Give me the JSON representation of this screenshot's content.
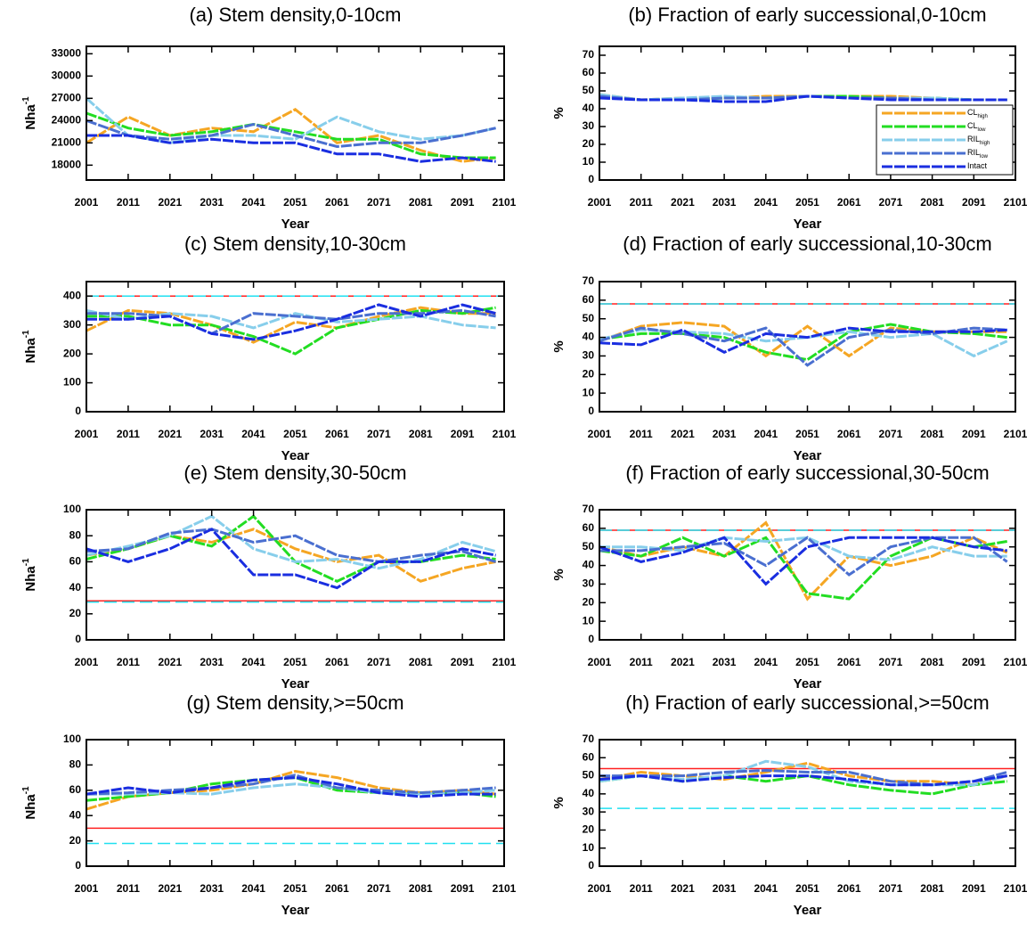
{
  "chart_data": [
    {
      "type": "line",
      "title": "(a) Stem density,0-10cm",
      "xlabel": "Year",
      "ylabel": "Nha",
      "ylabel_sup": "-1",
      "x": [
        2001,
        2011,
        2021,
        2031,
        2041,
        2051,
        2061,
        2071,
        2081,
        2091,
        2099
      ],
      "xlim": [
        2001,
        2101
      ],
      "xticks": [
        2001,
        2011,
        2021,
        2031,
        2041,
        2051,
        2061,
        2071,
        2081,
        2091,
        2101
      ],
      "ylim": [
        16000,
        34000
      ],
      "yticks": [
        18000,
        21000,
        24000,
        27000,
        30000,
        33000
      ],
      "series": [
        {
          "name": "CL",
          "subscript": "high",
          "color": "#f5a623",
          "values": [
            21000,
            24500,
            22000,
            23000,
            22500,
            25500,
            21000,
            22000,
            20000,
            18500,
            19000
          ]
        },
        {
          "name": "CL",
          "subscript": "low",
          "color": "#22dd22",
          "values": [
            25000,
            23000,
            22000,
            22500,
            23500,
            22500,
            21500,
            21500,
            19500,
            19000,
            19000
          ]
        },
        {
          "name": "RIL",
          "subscript": "high",
          "color": "#87ceeb",
          "values": [
            27000,
            22000,
            21000,
            22000,
            22000,
            21500,
            24500,
            22500,
            21500,
            22000,
            23000
          ]
        },
        {
          "name": "RIL",
          "subscript": "low",
          "color": "#4a6fd0",
          "values": [
            24000,
            22000,
            21500,
            22000,
            23500,
            22000,
            20500,
            21000,
            21000,
            22000,
            23000
          ]
        },
        {
          "name": "Intact",
          "color": "#1a2ee0",
          "values": [
            22000,
            22000,
            21000,
            21500,
            21000,
            21000,
            19500,
            19500,
            18500,
            19000,
            18500
          ]
        }
      ],
      "reference_lines": []
    },
    {
      "type": "line",
      "title": "(b) Fraction of early successional,0-10cm",
      "xlabel": "Year",
      "ylabel": "%",
      "x": [
        2001,
        2011,
        2021,
        2031,
        2041,
        2051,
        2061,
        2071,
        2081,
        2091,
        2099
      ],
      "xlim": [
        2001,
        2101
      ],
      "xticks": [
        2001,
        2011,
        2021,
        2031,
        2041,
        2051,
        2061,
        2071,
        2081,
        2091,
        2101
      ],
      "ylim": [
        0,
        75
      ],
      "yticks": [
        0,
        10,
        20,
        30,
        40,
        50,
        60,
        70
      ],
      "legend": "lower right",
      "series": [
        {
          "name": "CL",
          "subscript": "high",
          "color": "#f5a623",
          "values": [
            48,
            45,
            46,
            46,
            47,
            47,
            47,
            47,
            46,
            45,
            45
          ]
        },
        {
          "name": "CL",
          "subscript": "low",
          "color": "#22dd22",
          "values": [
            47,
            45,
            45,
            46,
            46,
            47,
            47,
            46,
            46,
            45,
            45
          ]
        },
        {
          "name": "RIL",
          "subscript": "high",
          "color": "#87ceeb",
          "values": [
            48,
            45,
            46,
            47,
            46,
            47,
            46,
            46,
            46,
            45,
            45
          ]
        },
        {
          "name": "RIL",
          "subscript": "low",
          "color": "#4a6fd0",
          "values": [
            47,
            45,
            45,
            46,
            46,
            47,
            46,
            46,
            45,
            45,
            45
          ]
        },
        {
          "name": "Intact",
          "color": "#1a2ee0",
          "values": [
            46,
            45,
            45,
            44,
            44,
            47,
            46,
            45,
            45,
            45,
            45
          ]
        }
      ],
      "reference_lines": []
    },
    {
      "type": "line",
      "title": "(c) Stem density,10-30cm",
      "xlabel": "Year",
      "ylabel": "Nha",
      "ylabel_sup": "-1",
      "x": [
        2001,
        2011,
        2021,
        2031,
        2041,
        2051,
        2061,
        2071,
        2081,
        2091,
        2099
      ],
      "xlim": [
        2001,
        2101
      ],
      "xticks": [
        2001,
        2011,
        2021,
        2031,
        2041,
        2051,
        2061,
        2071,
        2081,
        2091,
        2101
      ],
      "ylim": [
        0,
        450
      ],
      "yticks": [
        0,
        100,
        200,
        300,
        400
      ],
      "series": [
        {
          "name": "CL",
          "subscript": "high",
          "color": "#f5a623",
          "values": [
            280,
            350,
            340,
            300,
            240,
            310,
            290,
            330,
            360,
            340,
            340
          ]
        },
        {
          "name": "CL",
          "subscript": "low",
          "color": "#22dd22",
          "values": [
            330,
            330,
            300,
            300,
            260,
            200,
            290,
            320,
            350,
            340,
            360
          ]
        },
        {
          "name": "RIL",
          "subscript": "high",
          "color": "#87ceeb",
          "values": [
            350,
            320,
            340,
            330,
            290,
            340,
            310,
            320,
            330,
            300,
            290
          ]
        },
        {
          "name": "RIL",
          "subscript": "low",
          "color": "#4a6fd0",
          "values": [
            340,
            340,
            330,
            270,
            340,
            330,
            320,
            340,
            340,
            350,
            330
          ]
        },
        {
          "name": "Intact",
          "color": "#1a2ee0",
          "values": [
            320,
            320,
            330,
            270,
            250,
            280,
            320,
            370,
            330,
            370,
            340
          ]
        }
      ],
      "reference_lines": [
        {
          "value": 400,
          "color": "#ff2020"
        },
        {
          "value": 400,
          "color": "#20e0f0",
          "dashed": true
        }
      ]
    },
    {
      "type": "line",
      "title": "(d) Fraction of early successional,10-30cm",
      "xlabel": "Year",
      "ylabel": "%",
      "x": [
        2001,
        2011,
        2021,
        2031,
        2041,
        2051,
        2061,
        2071,
        2081,
        2091,
        2099
      ],
      "xlim": [
        2001,
        2101
      ],
      "xticks": [
        2001,
        2011,
        2021,
        2031,
        2041,
        2051,
        2061,
        2071,
        2081,
        2091,
        2101
      ],
      "ylim": [
        0,
        70
      ],
      "yticks": [
        0,
        10,
        20,
        30,
        40,
        50,
        60,
        70
      ],
      "series": [
        {
          "name": "CL",
          "subscript": "high",
          "color": "#f5a623",
          "values": [
            38,
            46,
            48,
            46,
            30,
            46,
            30,
            45,
            43,
            43,
            43
          ]
        },
        {
          "name": "CL",
          "subscript": "low",
          "color": "#22dd22",
          "values": [
            39,
            42,
            42,
            40,
            32,
            28,
            43,
            47,
            43,
            42,
            40
          ]
        },
        {
          "name": "RIL",
          "subscript": "high",
          "color": "#87ceeb",
          "values": [
            39,
            44,
            43,
            42,
            38,
            40,
            43,
            40,
            42,
            30,
            38
          ]
        },
        {
          "name": "RIL",
          "subscript": "low",
          "color": "#4a6fd0",
          "values": [
            38,
            45,
            42,
            38,
            45,
            25,
            40,
            44,
            42,
            45,
            44
          ]
        },
        {
          "name": "Intact",
          "color": "#1a2ee0",
          "values": [
            37,
            36,
            44,
            32,
            42,
            40,
            45,
            43,
            43,
            43,
            44
          ]
        }
      ],
      "reference_lines": [
        {
          "value": 58,
          "color": "#ff2020"
        },
        {
          "value": 58,
          "color": "#20e0f0",
          "dashed": true
        }
      ]
    },
    {
      "type": "line",
      "title": "(e) Stem density,30-50cm",
      "xlabel": "Year",
      "ylabel": "Nha",
      "ylabel_sup": "-1",
      "x": [
        2001,
        2011,
        2021,
        2031,
        2041,
        2051,
        2061,
        2071,
        2081,
        2091,
        2099
      ],
      "xlim": [
        2001,
        2101
      ],
      "xticks": [
        2001,
        2011,
        2021,
        2031,
        2041,
        2051,
        2061,
        2071,
        2081,
        2091,
        2101
      ],
      "ylim": [
        0,
        100
      ],
      "yticks": [
        0,
        20,
        40,
        60,
        80,
        100
      ],
      "series": [
        {
          "name": "CL",
          "subscript": "high",
          "color": "#f5a623",
          "values": [
            65,
            70,
            80,
            75,
            85,
            70,
            60,
            65,
            45,
            55,
            60
          ]
        },
        {
          "name": "CL",
          "subscript": "low",
          "color": "#22dd22",
          "values": [
            62,
            70,
            80,
            72,
            95,
            60,
            45,
            60,
            60,
            65,
            62
          ]
        },
        {
          "name": "RIL",
          "subscript": "high",
          "color": "#87ceeb",
          "values": [
            65,
            72,
            80,
            95,
            70,
            60,
            62,
            55,
            62,
            75,
            68
          ]
        },
        {
          "name": "RIL",
          "subscript": "low",
          "color": "#4a6fd0",
          "values": [
            68,
            70,
            82,
            85,
            75,
            80,
            65,
            60,
            65,
            68,
            60
          ]
        },
        {
          "name": "Intact",
          "color": "#1a2ee0",
          "values": [
            70,
            60,
            70,
            85,
            50,
            50,
            40,
            60,
            60,
            70,
            65
          ]
        }
      ],
      "reference_lines": [
        {
          "value": 30,
          "color": "#ff2020"
        },
        {
          "value": 29,
          "color": "#20e0f0",
          "dashed": true
        }
      ]
    },
    {
      "type": "line",
      "title": "(f) Fraction of early successional,30-50cm",
      "xlabel": "Year",
      "ylabel": "%",
      "x": [
        2001,
        2011,
        2021,
        2031,
        2041,
        2051,
        2061,
        2071,
        2081,
        2091,
        2099
      ],
      "xlim": [
        2001,
        2101
      ],
      "xticks": [
        2001,
        2011,
        2021,
        2031,
        2041,
        2051,
        2061,
        2071,
        2081,
        2091,
        2101
      ],
      "ylim": [
        0,
        70
      ],
      "yticks": [
        0,
        10,
        20,
        30,
        40,
        50,
        60,
        70
      ],
      "series": [
        {
          "name": "CL",
          "subscript": "high",
          "color": "#f5a623",
          "values": [
            50,
            45,
            50,
            45,
            63,
            22,
            45,
            40,
            45,
            55,
            47
          ]
        },
        {
          "name": "CL",
          "subscript": "low",
          "color": "#22dd22",
          "values": [
            48,
            45,
            55,
            45,
            55,
            25,
            22,
            45,
            55,
            50,
            53
          ]
        },
        {
          "name": "RIL",
          "subscript": "high",
          "color": "#87ceeb",
          "values": [
            50,
            50,
            48,
            55,
            53,
            55,
            45,
            43,
            50,
            45,
            45
          ]
        },
        {
          "name": "RIL",
          "subscript": "low",
          "color": "#4a6fd0",
          "values": [
            48,
            48,
            50,
            52,
            40,
            55,
            35,
            50,
            55,
            55,
            42
          ]
        },
        {
          "name": "Intact",
          "color": "#1a2ee0",
          "values": [
            50,
            42,
            47,
            55,
            30,
            50,
            55,
            55,
            55,
            50,
            48
          ]
        }
      ],
      "reference_lines": [
        {
          "value": 59,
          "color": "#ff2020"
        },
        {
          "value": 59,
          "color": "#20e0f0",
          "dashed": true
        }
      ]
    },
    {
      "type": "line",
      "title": "(g) Stem density,>=50cm",
      "xlabel": "Year",
      "ylabel": "Nha",
      "ylabel_sup": "-1",
      "x": [
        2001,
        2011,
        2021,
        2031,
        2041,
        2051,
        2061,
        2071,
        2081,
        2091,
        2099
      ],
      "xlim": [
        2001,
        2101
      ],
      "xticks": [
        2001,
        2011,
        2021,
        2031,
        2041,
        2051,
        2061,
        2071,
        2081,
        2091,
        2101
      ],
      "ylim": [
        0,
        100
      ],
      "yticks": [
        0,
        20,
        40,
        60,
        80,
        100
      ],
      "series": [
        {
          "name": "CL",
          "subscript": "high",
          "color": "#f5a623",
          "values": [
            45,
            55,
            58,
            60,
            65,
            75,
            70,
            62,
            58,
            60,
            57
          ]
        },
        {
          "name": "CL",
          "subscript": "low",
          "color": "#22dd22",
          "values": [
            52,
            55,
            58,
            65,
            68,
            70,
            60,
            58,
            58,
            58,
            55
          ]
        },
        {
          "name": "RIL",
          "subscript": "high",
          "color": "#87ceeb",
          "values": [
            57,
            57,
            58,
            57,
            62,
            65,
            62,
            58,
            57,
            58,
            60
          ]
        },
        {
          "name": "RIL",
          "subscript": "low",
          "color": "#4a6fd0",
          "values": [
            57,
            58,
            60,
            62,
            65,
            72,
            62,
            60,
            58,
            60,
            62
          ]
        },
        {
          "name": "Intact",
          "color": "#1a2ee0",
          "values": [
            57,
            62,
            58,
            62,
            68,
            70,
            65,
            58,
            55,
            57,
            57
          ]
        }
      ],
      "reference_lines": [
        {
          "value": 30,
          "color": "#ff2020"
        },
        {
          "value": 18,
          "color": "#20e0f0",
          "dashed": true
        }
      ]
    },
    {
      "type": "line",
      "title": "(h) Fraction of early successional,>=50cm",
      "xlabel": "Year",
      "ylabel": "%",
      "x": [
        2001,
        2011,
        2021,
        2031,
        2041,
        2051,
        2061,
        2071,
        2081,
        2091,
        2099
      ],
      "xlim": [
        2001,
        2101
      ],
      "xticks": [
        2001,
        2011,
        2021,
        2031,
        2041,
        2051,
        2061,
        2071,
        2081,
        2091,
        2101
      ],
      "ylim": [
        0,
        70
      ],
      "yticks": [
        0,
        10,
        20,
        30,
        40,
        50,
        60,
        70
      ],
      "series": [
        {
          "name": "CL",
          "subscript": "high",
          "color": "#f5a623",
          "values": [
            48,
            52,
            50,
            48,
            52,
            57,
            50,
            47,
            47,
            45,
            50
          ]
        },
        {
          "name": "CL",
          "subscript": "low",
          "color": "#22dd22",
          "values": [
            47,
            50,
            47,
            50,
            47,
            50,
            45,
            42,
            40,
            45,
            47
          ]
        },
        {
          "name": "RIL",
          "subscript": "high",
          "color": "#87ceeb",
          "values": [
            47,
            50,
            48,
            50,
            58,
            55,
            47,
            45,
            45,
            45,
            50
          ]
        },
        {
          "name": "RIL",
          "subscript": "low",
          "color": "#4a6fd0",
          "values": [
            50,
            50,
            50,
            52,
            53,
            52,
            52,
            47,
            45,
            47,
            52
          ]
        },
        {
          "name": "Intact",
          "color": "#1a2ee0",
          "values": [
            48,
            50,
            47,
            49,
            50,
            50,
            48,
            45,
            45,
            47,
            50
          ]
        }
      ],
      "reference_lines": [
        {
          "value": 54,
          "color": "#ff2020"
        },
        {
          "value": 32,
          "color": "#20e0f0",
          "dashed": true
        }
      ]
    }
  ]
}
